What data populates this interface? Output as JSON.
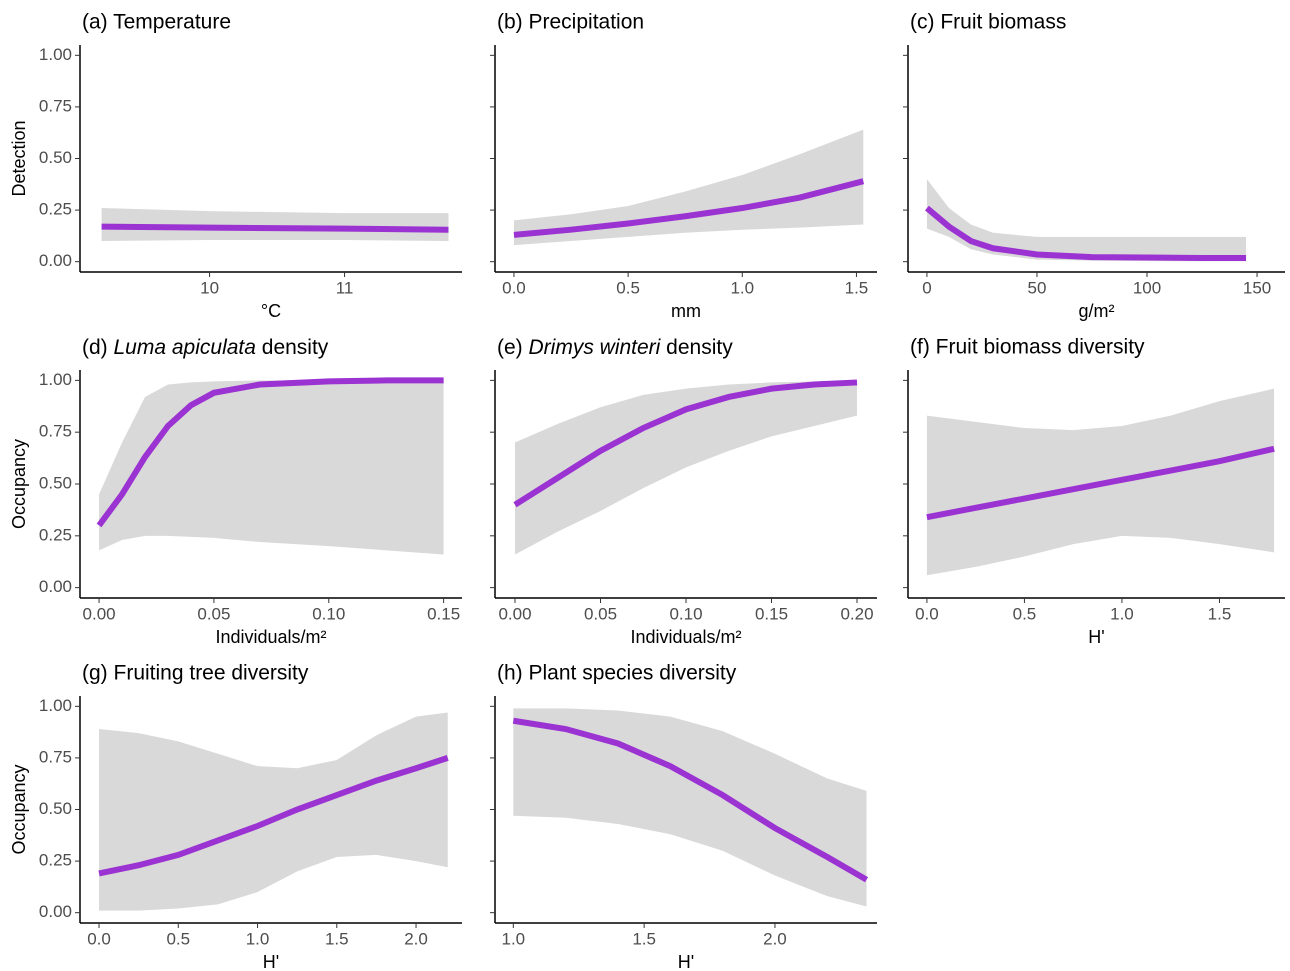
{
  "chart_data": [
    {
      "type": "line",
      "title": "(a) Temperature",
      "xlabel": "°C",
      "ylabel": "Detection",
      "color": "#9b32d2",
      "band_color": "#d9d9d9",
      "x": [
        9.2,
        10,
        11,
        11.77
      ],
      "values": [
        0.17,
        0.165,
        0.16,
        0.155
      ],
      "lower": [
        0.1,
        0.105,
        0.105,
        0.1
      ],
      "upper": [
        0.26,
        0.245,
        0.235,
        0.235
      ],
      "xlim": [
        9.04,
        11.87
      ],
      "xticks": [
        10,
        11
      ],
      "ylim": [
        -0.05,
        1.05
      ],
      "yticks": [
        {
          "value": 0,
          "label": "0.00"
        },
        {
          "value": 0.25,
          "label": "0.25"
        },
        {
          "value": 0.5,
          "label": "0.50"
        },
        {
          "value": 0.75,
          "label": "0.75"
        },
        {
          "value": 1,
          "label": "1.00"
        }
      ]
    },
    {
      "type": "line",
      "title": "(b) Precipitation",
      "xlabel": "mm",
      "color": "#9b32d2",
      "band_color": "#d9d9d9",
      "x": [
        0,
        0.25,
        0.5,
        0.75,
        1.0,
        1.25,
        1.53
      ],
      "values": [
        0.13,
        0.155,
        0.185,
        0.22,
        0.26,
        0.31,
        0.39
      ],
      "lower": [
        0.08,
        0.1,
        0.12,
        0.14,
        0.155,
        0.165,
        0.18
      ],
      "upper": [
        0.2,
        0.23,
        0.27,
        0.34,
        0.42,
        0.52,
        0.64
      ],
      "xlim": [
        -0.083,
        1.59
      ],
      "xticks": [
        {
          "value": 0,
          "label": "0.0"
        },
        {
          "value": 0.5,
          "label": "0.5"
        },
        {
          "value": 1,
          "label": "1.0"
        },
        {
          "value": 1.5,
          "label": "1.5"
        }
      ],
      "ylim": [
        -0.05,
        1.05
      ],
      "yticks": [
        0,
        0.25,
        0.5,
        0.75,
        1
      ]
    },
    {
      "type": "line",
      "title": "(c) Fruit biomass",
      "xlabel": "g/m²",
      "color": "#9b32d2",
      "band_color": "#d9d9d9",
      "x": [
        0,
        10,
        20,
        30,
        50,
        75,
        100,
        125,
        145
      ],
      "values": [
        0.26,
        0.17,
        0.1,
        0.065,
        0.035,
        0.022,
        0.02,
        0.018,
        0.018
      ],
      "lower": [
        0.16,
        0.12,
        0.06,
        0.035,
        0.01,
        0.005,
        0.003,
        0.002,
        0.002
      ],
      "upper": [
        0.4,
        0.26,
        0.18,
        0.14,
        0.12,
        0.12,
        0.12,
        0.12,
        0.12
      ],
      "xlim": [
        -8.6,
        162.7
      ],
      "xticks": [
        0,
        50,
        100,
        150
      ],
      "ylim": [
        -0.05,
        1.05
      ],
      "yticks": [
        0,
        0.25,
        0.5,
        0.75,
        1
      ]
    },
    {
      "type": "line",
      "title": [
        {
          "text": "(d) "
        },
        {
          "text": "Luma apiculata",
          "italic": true
        },
        {
          "text": " density"
        }
      ],
      "xlabel": "Individuals/m²",
      "ylabel": "Occupancy",
      "color": "#9b32d2",
      "band_color": "#d9d9d9",
      "x": [
        0,
        0.01,
        0.02,
        0.03,
        0.04,
        0.05,
        0.07,
        0.1,
        0.125,
        0.15
      ],
      "values": [
        0.3,
        0.45,
        0.63,
        0.78,
        0.88,
        0.94,
        0.98,
        0.995,
        1,
        1
      ],
      "lower": [
        0.18,
        0.23,
        0.25,
        0.25,
        0.245,
        0.24,
        0.22,
        0.2,
        0.18,
        0.16
      ],
      "upper": [
        0.45,
        0.7,
        0.92,
        0.98,
        0.99,
        0.995,
        1,
        1,
        1,
        1
      ],
      "xlim": [
        -0.0083,
        0.158
      ],
      "xticks": [
        {
          "value": 0,
          "label": "0.00"
        },
        {
          "value": 0.05,
          "label": "0.05"
        },
        {
          "value": 0.1,
          "label": "0.10"
        },
        {
          "value": 0.15,
          "label": "0.15"
        }
      ],
      "ylim": [
        -0.05,
        1.05
      ],
      "yticks": [
        {
          "value": 0,
          "label": "0.00"
        },
        {
          "value": 0.25,
          "label": "0.25"
        },
        {
          "value": 0.5,
          "label": "0.50"
        },
        {
          "value": 0.75,
          "label": "0.75"
        },
        {
          "value": 1,
          "label": "1.00"
        }
      ]
    },
    {
      "type": "line",
      "title": [
        {
          "text": "(e) "
        },
        {
          "text": "Drimys winteri",
          "italic": true
        },
        {
          "text": " density"
        }
      ],
      "xlabel": "Individuals/m²",
      "color": "#9b32d2",
      "band_color": "#d9d9d9",
      "x": [
        0,
        0.025,
        0.05,
        0.075,
        0.1,
        0.125,
        0.15,
        0.175,
        0.2
      ],
      "values": [
        0.4,
        0.53,
        0.66,
        0.77,
        0.86,
        0.92,
        0.96,
        0.98,
        0.99
      ],
      "lower": [
        0.16,
        0.27,
        0.37,
        0.48,
        0.58,
        0.66,
        0.73,
        0.78,
        0.83
      ],
      "upper": [
        0.7,
        0.79,
        0.87,
        0.93,
        0.96,
        0.98,
        0.99,
        0.995,
        1
      ],
      "xlim": [
        -0.0117,
        0.2117
      ],
      "xticks": [
        {
          "value": 0,
          "label": "0.00"
        },
        {
          "value": 0.05,
          "label": "0.05"
        },
        {
          "value": 0.1,
          "label": "0.10"
        },
        {
          "value": 0.15,
          "label": "0.15"
        },
        {
          "value": 0.2,
          "label": "0.20"
        }
      ],
      "ylim": [
        -0.05,
        1.05
      ],
      "yticks": [
        0,
        0.25,
        0.5,
        0.75,
        1
      ]
    },
    {
      "type": "line",
      "title": "(f) Fruit biomass diversity",
      "xlabel": "H'",
      "color": "#9b32d2",
      "band_color": "#d9d9d9",
      "x": [
        0,
        0.25,
        0.5,
        0.75,
        1,
        1.25,
        1.5,
        1.78
      ],
      "values": [
        0.34,
        0.385,
        0.43,
        0.475,
        0.52,
        0.565,
        0.61,
        0.67
      ],
      "lower": [
        0.06,
        0.1,
        0.15,
        0.21,
        0.25,
        0.24,
        0.21,
        0.17
      ],
      "upper": [
        0.83,
        0.8,
        0.77,
        0.76,
        0.78,
        0.83,
        0.9,
        0.96
      ],
      "xlim": [
        -0.097,
        1.836
      ],
      "xticks": [
        {
          "value": 0,
          "label": "0.0"
        },
        {
          "value": 0.5,
          "label": "0.5"
        },
        {
          "value": 1,
          "label": "1.0"
        },
        {
          "value": 1.5,
          "label": "1.5"
        }
      ],
      "ylim": [
        -0.05,
        1.05
      ],
      "yticks": [
        0,
        0.25,
        0.5,
        0.75,
        1
      ]
    },
    {
      "type": "line",
      "title": "(g) Fruiting tree diversity",
      "xlabel": "H'",
      "ylabel": "Occupancy",
      "color": "#9b32d2",
      "band_color": "#d9d9d9",
      "x": [
        0,
        0.25,
        0.5,
        0.75,
        1,
        1.25,
        1.5,
        1.75,
        2,
        2.2
      ],
      "values": [
        0.19,
        0.23,
        0.28,
        0.35,
        0.42,
        0.5,
        0.57,
        0.64,
        0.7,
        0.75
      ],
      "lower": [
        0.01,
        0.01,
        0.02,
        0.04,
        0.1,
        0.2,
        0.27,
        0.28,
        0.25,
        0.22
      ],
      "upper": [
        0.89,
        0.87,
        0.83,
        0.77,
        0.71,
        0.7,
        0.74,
        0.86,
        0.95,
        0.97
      ],
      "xlim": [
        -0.12,
        2.29
      ],
      "xticks": [
        {
          "value": 0,
          "label": "0.0"
        },
        {
          "value": 0.5,
          "label": "0.5"
        },
        {
          "value": 1,
          "label": "1.0"
        },
        {
          "value": 1.5,
          "label": "1.5"
        },
        {
          "value": 2,
          "label": "2.0"
        }
      ],
      "ylim": [
        -0.05,
        1.05
      ],
      "yticks": [
        {
          "value": 0,
          "label": "0.00"
        },
        {
          "value": 0.25,
          "label": "0.25"
        },
        {
          "value": 0.5,
          "label": "0.50"
        },
        {
          "value": 0.75,
          "label": "0.75"
        },
        {
          "value": 1,
          "label": "1.00"
        }
      ]
    },
    {
      "type": "line",
      "title": "(h) Plant species diversity",
      "xlabel": "H'",
      "color": "#9b32d2",
      "band_color": "#d9d9d9",
      "x": [
        1,
        1.2,
        1.4,
        1.6,
        1.8,
        2,
        2.2,
        2.35
      ],
      "values": [
        0.93,
        0.89,
        0.82,
        0.71,
        0.57,
        0.41,
        0.27,
        0.16
      ],
      "lower": [
        0.47,
        0.46,
        0.43,
        0.38,
        0.3,
        0.18,
        0.08,
        0.03
      ],
      "upper": [
        0.99,
        0.99,
        0.98,
        0.95,
        0.88,
        0.77,
        0.65,
        0.59
      ],
      "xlim": [
        0.93,
        2.39
      ],
      "xticks": [
        {
          "value": 1,
          "label": "1.0"
        },
        {
          "value": 1.5,
          "label": "1.5"
        },
        {
          "value": 2,
          "label": "2.0"
        }
      ],
      "ylim": [
        -0.05,
        1.05
      ],
      "yticks": [
        0,
        0.25,
        0.5,
        0.75,
        1
      ]
    }
  ]
}
